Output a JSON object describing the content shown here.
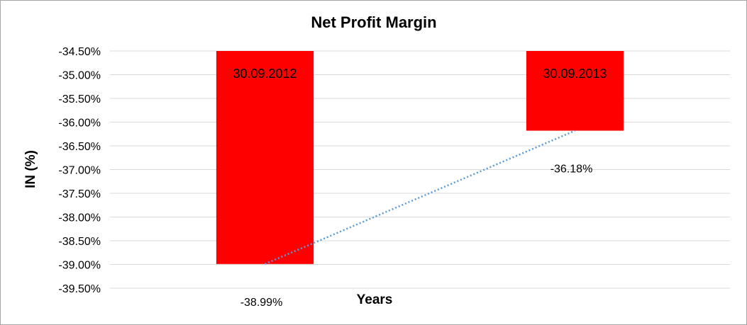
{
  "chart_data": {
    "type": "bar",
    "title": "Net Profit Margin",
    "xlabel": "Years",
    "ylabel": "IN (%)",
    "categories": [
      "30.09.2012",
      "30.09.2013"
    ],
    "values": [
      -38.99,
      -36.18
    ],
    "data_labels": [
      "-38.99%",
      "-36.18%"
    ],
    "ylim": [
      -39.5,
      -34.5
    ],
    "yticks": [
      -34.5,
      -35.0,
      -35.5,
      -36.0,
      -36.5,
      -37.0,
      -37.5,
      -38.0,
      -38.5,
      -39.0,
      -39.5
    ],
    "ytick_labels": [
      "-34.50%",
      "-35.00%",
      "-35.50%",
      "-36.00%",
      "-36.50%",
      "-37.00%",
      "-37.50%",
      "-38.00%",
      "-38.50%",
      "-39.00%",
      "-39.50%"
    ],
    "bars_hang_from": -34.5,
    "trendline": "linear, dotted",
    "grid": true,
    "legend": "none",
    "colors": {
      "bar": "#ff0000",
      "trendline": "#5b9bd5",
      "grid": "#d9d9d9"
    }
  }
}
